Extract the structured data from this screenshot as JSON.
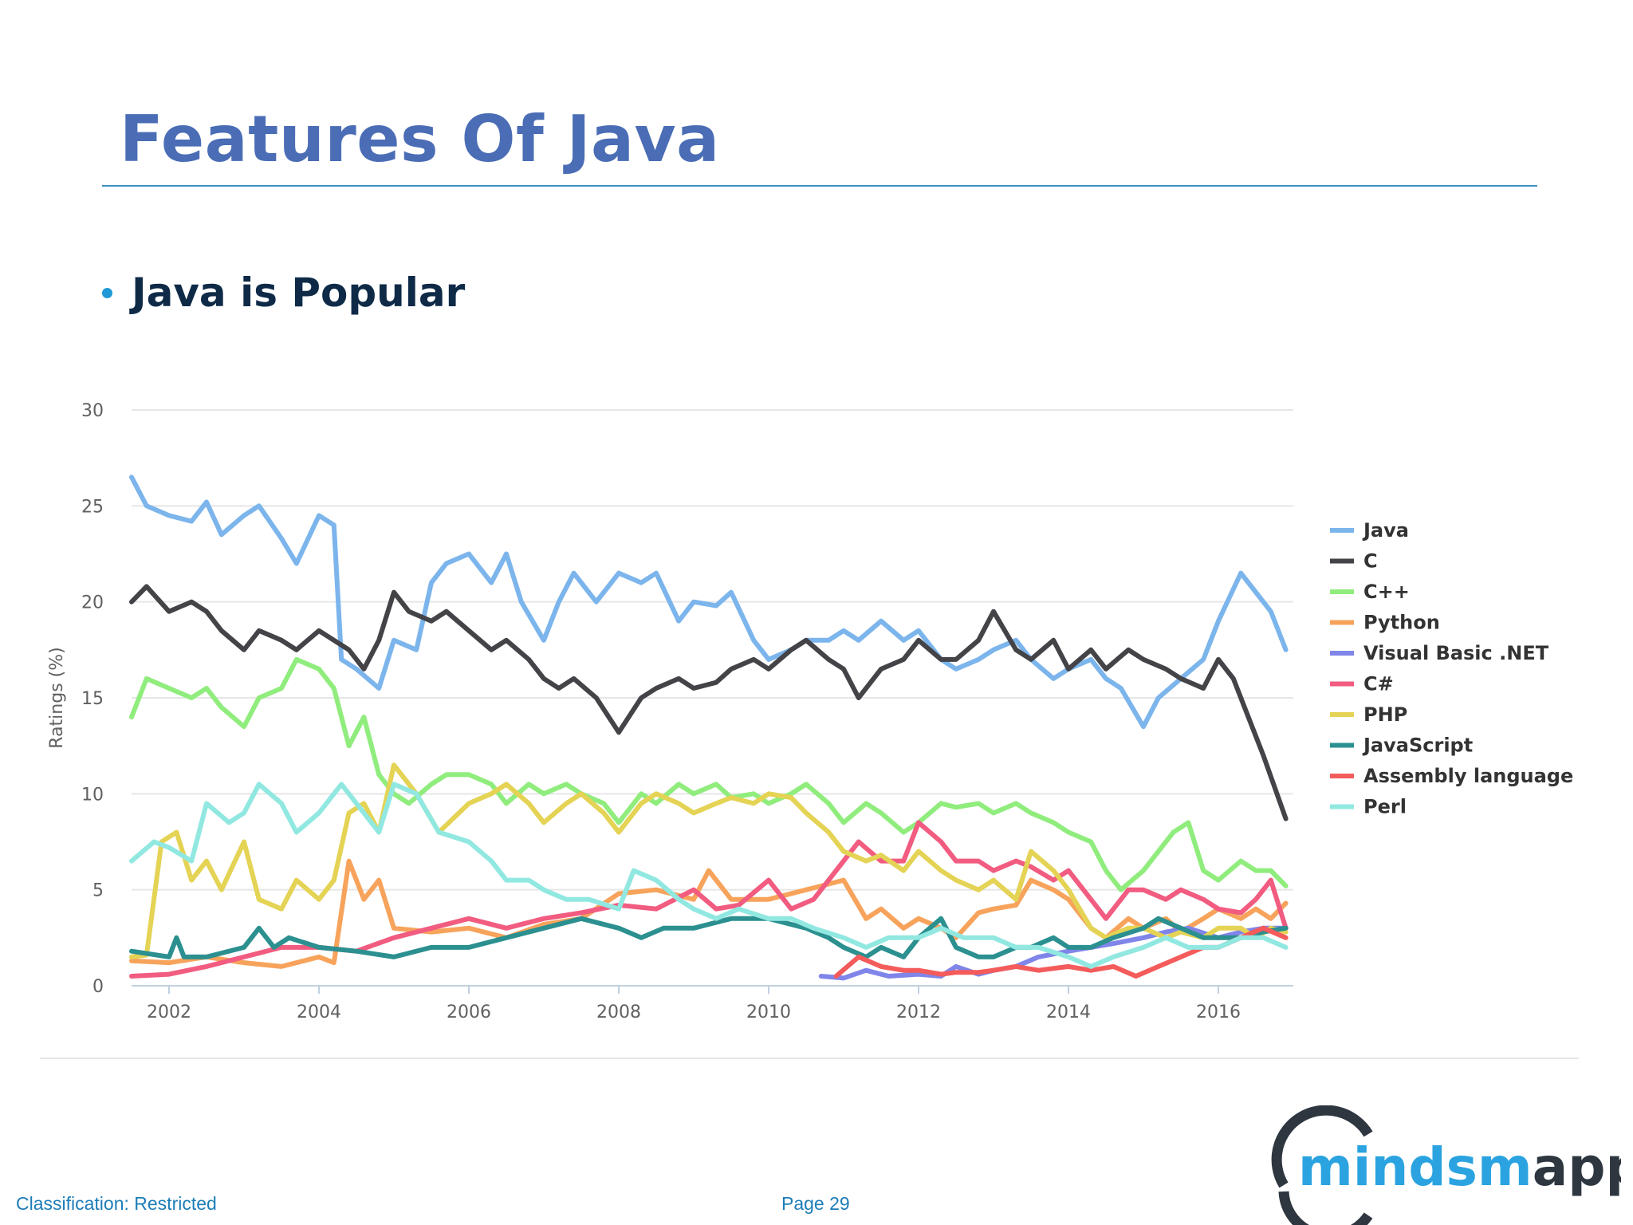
{
  "slide": {
    "title": "Features Of Java",
    "bullet": "Java is Popular",
    "footer": {
      "classification": "Classification: Restricted",
      "page": "Page 29"
    },
    "logo": {
      "text_light": "minds",
      "text_mid": "m",
      "text_dark": "apped"
    }
  },
  "colors": {
    "title": "#4a6db5",
    "rule": "#3b8fc4",
    "bullet_dot": "#1f9ad6",
    "bullet_text": "#0e2a47",
    "footer": "#1d7db8",
    "logo_blue": "#2aa3e0",
    "logo_dark": "#2e3640"
  },
  "chart_data": {
    "type": "line",
    "title": "",
    "xlabel": "",
    "ylabel": "Ratings (%)",
    "xlim": [
      2001.5,
      2017.0
    ],
    "ylim": [
      0,
      30
    ],
    "yticks": [
      0,
      5,
      10,
      15,
      20,
      25,
      30
    ],
    "xticks": [
      2002,
      2004,
      2006,
      2008,
      2010,
      2012,
      2014,
      2016
    ],
    "grid": "horizontal",
    "legend": "right",
    "series": [
      {
        "name": "Java",
        "color": "#7cb5ec",
        "x": [
          2001.5,
          2001.7,
          2002.0,
          2002.3,
          2002.5,
          2002.7,
          2003.0,
          2003.2,
          2003.5,
          2003.7,
          2004.0,
          2004.2,
          2004.3,
          2004.5,
          2004.8,
          2005.0,
          2005.3,
          2005.5,
          2005.7,
          2006.0,
          2006.3,
          2006.5,
          2006.7,
          2007.0,
          2007.2,
          2007.4,
          2007.7,
          2008.0,
          2008.3,
          2008.5,
          2008.8,
          2009.0,
          2009.3,
          2009.5,
          2009.8,
          2010.0,
          2010.3,
          2010.5,
          2010.8,
          2011.0,
          2011.2,
          2011.5,
          2011.8,
          2012.0,
          2012.3,
          2012.5,
          2012.8,
          2013.0,
          2013.3,
          2013.5,
          2013.8,
          2014.0,
          2014.3,
          2014.5,
          2014.7,
          2015.0,
          2015.2,
          2015.5,
          2015.8,
          2016.0,
          2016.3,
          2016.5,
          2016.7,
          2016.9
        ],
        "y": [
          26.5,
          25,
          24.5,
          24.2,
          25.2,
          23.5,
          24.5,
          25,
          23.3,
          22,
          24.5,
          24,
          17,
          16.5,
          15.5,
          18,
          17.5,
          21,
          22,
          22.5,
          21,
          22.5,
          20,
          18,
          20,
          21.5,
          20,
          21.5,
          21,
          21.5,
          19,
          20,
          19.8,
          20.5,
          18,
          17,
          17.5,
          18,
          18,
          18.5,
          18,
          19,
          18,
          18.5,
          17,
          16.5,
          17,
          17.5,
          18,
          17,
          16,
          16.5,
          17,
          16,
          15.5,
          13.5,
          15,
          16,
          17,
          19,
          21.5,
          20.5,
          19.5,
          17.5
        ]
      },
      {
        "name": "C",
        "color": "#434348",
        "x": [
          2001.5,
          2001.7,
          2002.0,
          2002.3,
          2002.5,
          2002.7,
          2003.0,
          2003.2,
          2003.5,
          2003.7,
          2004.0,
          2004.2,
          2004.4,
          2004.6,
          2004.8,
          2005.0,
          2005.2,
          2005.5,
          2005.7,
          2006.0,
          2006.3,
          2006.5,
          2006.8,
          2007.0,
          2007.2,
          2007.4,
          2007.7,
          2008.0,
          2008.3,
          2008.5,
          2008.8,
          2009.0,
          2009.3,
          2009.5,
          2009.8,
          2010.0,
          2010.3,
          2010.5,
          2010.8,
          2011.0,
          2011.2,
          2011.5,
          2011.8,
          2012.0,
          2012.3,
          2012.5,
          2012.8,
          2013.0,
          2013.3,
          2013.5,
          2013.8,
          2014.0,
          2014.3,
          2014.5,
          2014.8,
          2015.0,
          2015.3,
          2015.5,
          2015.8,
          2016.0,
          2016.2,
          2016.4,
          2016.6,
          2016.9
        ],
        "y": [
          20,
          20.8,
          19.5,
          20,
          19.5,
          18.5,
          17.5,
          18.5,
          18,
          17.5,
          18.5,
          18,
          17.5,
          16.5,
          18,
          20.5,
          19.5,
          19,
          19.5,
          18.5,
          17.5,
          18,
          17,
          16,
          15.5,
          16,
          15,
          13.2,
          15,
          15.5,
          16,
          15.5,
          15.8,
          16.5,
          17,
          16.5,
          17.5,
          18,
          17,
          16.5,
          15,
          16.5,
          17,
          18,
          17,
          17,
          18,
          19.5,
          17.5,
          17,
          18,
          16.5,
          17.5,
          16.5,
          17.5,
          17,
          16.5,
          16,
          15.5,
          17,
          16,
          14,
          12,
          8.7
        ]
      },
      {
        "name": "C++",
        "color": "#90ed7d",
        "x": [
          2001.5,
          2001.7,
          2002.0,
          2002.3,
          2002.5,
          2002.7,
          2003.0,
          2003.2,
          2003.5,
          2003.7,
          2004.0,
          2004.2,
          2004.4,
          2004.6,
          2004.8,
          2005.0,
          2005.2,
          2005.5,
          2005.7,
          2006.0,
          2006.3,
          2006.5,
          2006.8,
          2007.0,
          2007.3,
          2007.5,
          2007.8,
          2008.0,
          2008.3,
          2008.5,
          2008.8,
          2009.0,
          2009.3,
          2009.5,
          2009.8,
          2010.0,
          2010.3,
          2010.5,
          2010.8,
          2011.0,
          2011.3,
          2011.5,
          2011.8,
          2012.0,
          2012.3,
          2012.5,
          2012.8,
          2013.0,
          2013.3,
          2013.5,
          2013.8,
          2014.0,
          2014.3,
          2014.5,
          2014.7,
          2015.0,
          2015.2,
          2015.4,
          2015.6,
          2015.8,
          2016.0,
          2016.3,
          2016.5,
          2016.7,
          2016.9
        ],
        "y": [
          14,
          16,
          15.5,
          15,
          15.5,
          14.5,
          13.5,
          15,
          15.5,
          17,
          16.5,
          15.5,
          12.5,
          14,
          11,
          10,
          9.5,
          10.5,
          11,
          11,
          10.5,
          9.5,
          10.5,
          10,
          10.5,
          10,
          9.5,
          8.5,
          10,
          9.5,
          10.5,
          10,
          10.5,
          9.8,
          10,
          9.5,
          10,
          10.5,
          9.5,
          8.5,
          9.5,
          9,
          8,
          8.5,
          9.5,
          9.3,
          9.5,
          9,
          9.5,
          9,
          8.5,
          8,
          7.5,
          6,
          5,
          6,
          7,
          8,
          8.5,
          6,
          5.5,
          6.5,
          6,
          6,
          5.2
        ]
      },
      {
        "name": "Python",
        "color": "#f7a35c",
        "x": [
          2001.5,
          2002.0,
          2002.5,
          2003.0,
          2003.5,
          2004.0,
          2004.2,
          2004.4,
          2004.6,
          2004.8,
          2005.0,
          2005.5,
          2006.0,
          2006.5,
          2007.0,
          2007.5,
          2008.0,
          2008.5,
          2009.0,
          2009.2,
          2009.5,
          2010.0,
          2010.5,
          2011.0,
          2011.3,
          2011.5,
          2011.8,
          2012.0,
          2012.3,
          2012.5,
          2012.8,
          2013.0,
          2013.3,
          2013.5,
          2013.8,
          2014.0,
          2014.3,
          2014.5,
          2014.8,
          2015.0,
          2015.3,
          2015.5,
          2015.8,
          2016.0,
          2016.3,
          2016.5,
          2016.7,
          2016.9
        ],
        "y": [
          1.3,
          1.2,
          1.5,
          1.2,
          1.0,
          1.5,
          1.2,
          6.5,
          4.5,
          5.5,
          3.0,
          2.8,
          3.0,
          2.5,
          3.2,
          3.5,
          4.8,
          5.0,
          4.5,
          6.0,
          4.5,
          4.5,
          5.0,
          5.5,
          3.5,
          4.0,
          3.0,
          3.5,
          3.0,
          2.5,
          3.8,
          4.0,
          4.2,
          5.5,
          5.0,
          4.5,
          3.0,
          2.5,
          3.5,
          3.0,
          3.5,
          2.8,
          3.5,
          4.0,
          3.5,
          4.0,
          3.5,
          4.3
        ]
      },
      {
        "name": "Visual Basic .NET",
        "color": "#8085e9",
        "x": [
          2010.7,
          2011.0,
          2011.3,
          2011.6,
          2012.0,
          2012.3,
          2012.5,
          2012.8,
          2013.0,
          2013.3,
          2013.6,
          2014.0,
          2014.3,
          2014.6,
          2015.0,
          2015.3,
          2015.6,
          2016.0,
          2016.3,
          2016.6,
          2016.9
        ],
        "y": [
          0.5,
          0.4,
          0.8,
          0.5,
          0.6,
          0.5,
          1.0,
          0.6,
          0.8,
          1.0,
          1.5,
          1.8,
          2.0,
          2.2,
          2.5,
          2.8,
          3.0,
          2.5,
          2.8,
          3.0,
          3.0
        ]
      },
      {
        "name": "C#",
        "color": "#f15c80",
        "x": [
          2001.5,
          2002.0,
          2002.5,
          2003.0,
          2003.5,
          2004.0,
          2004.5,
          2005.0,
          2005.5,
          2006.0,
          2006.5,
          2007.0,
          2007.5,
          2008.0,
          2008.5,
          2009.0,
          2009.3,
          2009.6,
          2010.0,
          2010.3,
          2010.6,
          2010.9,
          2011.2,
          2011.5,
          2011.8,
          2012.0,
          2012.3,
          2012.5,
          2012.8,
          2013.0,
          2013.3,
          2013.5,
          2013.8,
          2014.0,
          2014.2,
          2014.5,
          2014.8,
          2015.0,
          2015.3,
          2015.5,
          2015.8,
          2016.0,
          2016.3,
          2016.5,
          2016.7,
          2016.9
        ],
        "y": [
          0.5,
          0.6,
          1.0,
          1.5,
          2.0,
          2.0,
          1.8,
          2.5,
          3.0,
          3.5,
          3.0,
          3.5,
          3.8,
          4.2,
          4.0,
          5.0,
          4.0,
          4.2,
          5.5,
          4.0,
          4.5,
          6.0,
          7.5,
          6.5,
          6.5,
          8.5,
          7.5,
          6.5,
          6.5,
          6.0,
          6.5,
          6.2,
          5.5,
          6.0,
          5.0,
          3.5,
          5.0,
          5.0,
          4.5,
          5.0,
          4.5,
          4.0,
          3.8,
          4.5,
          5.5,
          3.0
        ]
      },
      {
        "name": "PHP",
        "color": "#e4d354",
        "x": [
          2001.5,
          2001.7,
          2001.9,
          2002.1,
          2002.3,
          2002.5,
          2002.7,
          2003.0,
          2003.2,
          2003.5,
          2003.7,
          2004.0,
          2004.2,
          2004.4,
          2004.6,
          2004.8,
          2005.0,
          2005.3,
          2005.6,
          2006.0,
          2006.3,
          2006.5,
          2006.8,
          2007.0,
          2007.3,
          2007.5,
          2007.8,
          2008.0,
          2008.3,
          2008.5,
          2008.8,
          2009.0,
          2009.3,
          2009.5,
          2009.8,
          2010.0,
          2010.3,
          2010.5,
          2010.8,
          2011.0,
          2011.3,
          2011.5,
          2011.8,
          2012.0,
          2012.3,
          2012.5,
          2012.8,
          2013.0,
          2013.3,
          2013.5,
          2013.8,
          2014.0,
          2014.3,
          2014.5,
          2014.8,
          2015.0,
          2015.3,
          2015.5,
          2015.8,
          2016.0,
          2016.3,
          2016.5,
          2016.7,
          2016.9
        ],
        "y": [
          1.5,
          1.6,
          7.5,
          8.0,
          5.5,
          6.5,
          5.0,
          7.5,
          4.5,
          4.0,
          5.5,
          4.5,
          5.5,
          9.0,
          9.5,
          8.0,
          11.5,
          10.0,
          8.0,
          9.5,
          10.0,
          10.5,
          9.5,
          8.5,
          9.5,
          10.0,
          9.0,
          8.0,
          9.5,
          10.0,
          9.5,
          9.0,
          9.5,
          9.8,
          9.5,
          10.0,
          9.8,
          9.0,
          8.0,
          7.0,
          6.5,
          6.8,
          6.0,
          7.0,
          6.0,
          5.5,
          5.0,
          5.5,
          4.5,
          7.0,
          6.0,
          5.0,
          3.0,
          2.5,
          3.0,
          3.0,
          2.5,
          2.8,
          2.5,
          3.0,
          3.0,
          2.5,
          3.0,
          2.8
        ]
      },
      {
        "name": "JavaScript",
        "color": "#2b908f",
        "x": [
          2001.5,
          2002.0,
          2002.1,
          2002.2,
          2002.5,
          2003.0,
          2003.2,
          2003.4,
          2003.6,
          2004.0,
          2004.5,
          2005.0,
          2005.5,
          2006.0,
          2006.5,
          2007.0,
          2007.5,
          2008.0,
          2008.3,
          2008.6,
          2009.0,
          2009.5,
          2010.0,
          2010.5,
          2010.8,
          2011.0,
          2011.3,
          2011.5,
          2011.8,
          2012.0,
          2012.3,
          2012.5,
          2012.8,
          2013.0,
          2013.3,
          2013.5,
          2013.8,
          2014.0,
          2014.3,
          2014.6,
          2015.0,
          2015.2,
          2015.5,
          2015.8,
          2016.0,
          2016.3,
          2016.6,
          2016.9
        ],
        "y": [
          1.8,
          1.5,
          2.5,
          1.5,
          1.5,
          2.0,
          3.0,
          2.0,
          2.5,
          2.0,
          1.8,
          1.5,
          2.0,
          2.0,
          2.5,
          3.0,
          3.5,
          3.0,
          2.5,
          3.0,
          3.0,
          3.5,
          3.5,
          3.0,
          2.5,
          2.0,
          1.5,
          2.0,
          1.5,
          2.5,
          3.5,
          2.0,
          1.5,
          1.5,
          2.0,
          2.0,
          2.5,
          2.0,
          2.0,
          2.5,
          3.0,
          3.5,
          3.0,
          2.5,
          2.5,
          2.5,
          2.8,
          3.0
        ]
      },
      {
        "name": "Assembly language",
        "color": "#f45b5b",
        "x": [
          2010.9,
          2011.2,
          2011.5,
          2011.8,
          2012.0,
          2012.3,
          2012.5,
          2012.8,
          2013.0,
          2013.3,
          2013.6,
          2014.0,
          2014.3,
          2014.6,
          2014.9,
          2015.2,
          2015.5,
          2015.8,
          2016.0,
          2016.3,
          2016.6,
          2016.9
        ],
        "y": [
          0.5,
          1.5,
          1.0,
          0.8,
          0.8,
          0.6,
          0.7,
          0.7,
          0.8,
          1.0,
          0.8,
          1.0,
          0.8,
          1.0,
          0.5,
          1.0,
          1.5,
          2.0,
          2.0,
          2.5,
          3.0,
          2.5
        ]
      },
      {
        "name": "Perl",
        "color": "#91e8e1",
        "x": [
          2001.5,
          2001.8,
          2002.0,
          2002.3,
          2002.5,
          2002.8,
          2003.0,
          2003.2,
          2003.5,
          2003.7,
          2004.0,
          2004.3,
          2004.6,
          2004.8,
          2005.0,
          2005.3,
          2005.6,
          2006.0,
          2006.3,
          2006.5,
          2006.8,
          2007.0,
          2007.3,
          2007.6,
          2008.0,
          2008.2,
          2008.5,
          2008.8,
          2009.0,
          2009.3,
          2009.6,
          2010.0,
          2010.3,
          2010.6,
          2011.0,
          2011.3,
          2011.6,
          2012.0,
          2012.3,
          2012.6,
          2013.0,
          2013.3,
          2013.6,
          2014.0,
          2014.3,
          2014.6,
          2015.0,
          2015.3,
          2015.6,
          2016.0,
          2016.3,
          2016.6,
          2016.9
        ],
        "y": [
          6.5,
          7.5,
          7.2,
          6.5,
          9.5,
          8.5,
          9.0,
          10.5,
          9.5,
          8.0,
          9.0,
          10.5,
          9.0,
          8.0,
          10.5,
          10.0,
          8.0,
          7.5,
          6.5,
          5.5,
          5.5,
          5.0,
          4.5,
          4.5,
          4.0,
          6.0,
          5.5,
          4.5,
          4.0,
          3.5,
          4.0,
          3.5,
          3.5,
          3.0,
          2.5,
          2.0,
          2.5,
          2.5,
          3.0,
          2.5,
          2.5,
          2.0,
          2.0,
          1.5,
          1.0,
          1.5,
          2.0,
          2.5,
          2.0,
          2.0,
          2.5,
          2.5,
          2.0
        ]
      }
    ]
  }
}
